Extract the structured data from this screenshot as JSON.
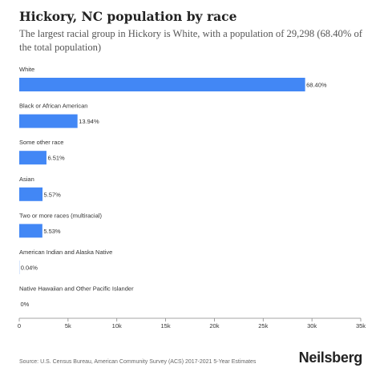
{
  "chart_data": {
    "type": "bar",
    "orientation": "horizontal",
    "title": "Hickory, NC population by race",
    "subtitle": "The largest racial group in Hickory is White, with a population of 29,298 (68.40% of the total population)",
    "categories": [
      "White",
      "Black or African American",
      "Some other race",
      "Asian",
      "Two or more races (multiracial)",
      "American Indian and Alaska Native",
      "Native Hawaiian and Other Pacific Islander"
    ],
    "values": [
      29298,
      5971,
      2789,
      2386,
      2369,
      17,
      0
    ],
    "value_labels": [
      "68.40%",
      "13.94%",
      "6.51%",
      "5.57%",
      "5.53%",
      "0.04%",
      "0%"
    ],
    "xlim": [
      0,
      35000
    ],
    "xticks": [
      0,
      5000,
      10000,
      15000,
      20000,
      25000,
      30000,
      35000
    ],
    "xtick_labels": [
      "0",
      "5k",
      "10k",
      "15k",
      "20k",
      "25k",
      "30k",
      "35k"
    ],
    "bar_color": "#4287f5",
    "grid": false
  },
  "footer": {
    "source": "Source: U.S. Census Bureau, American Community Survey (ACS) 2017-2021 5-Year Estimates",
    "brand": "Neilsberg"
  }
}
